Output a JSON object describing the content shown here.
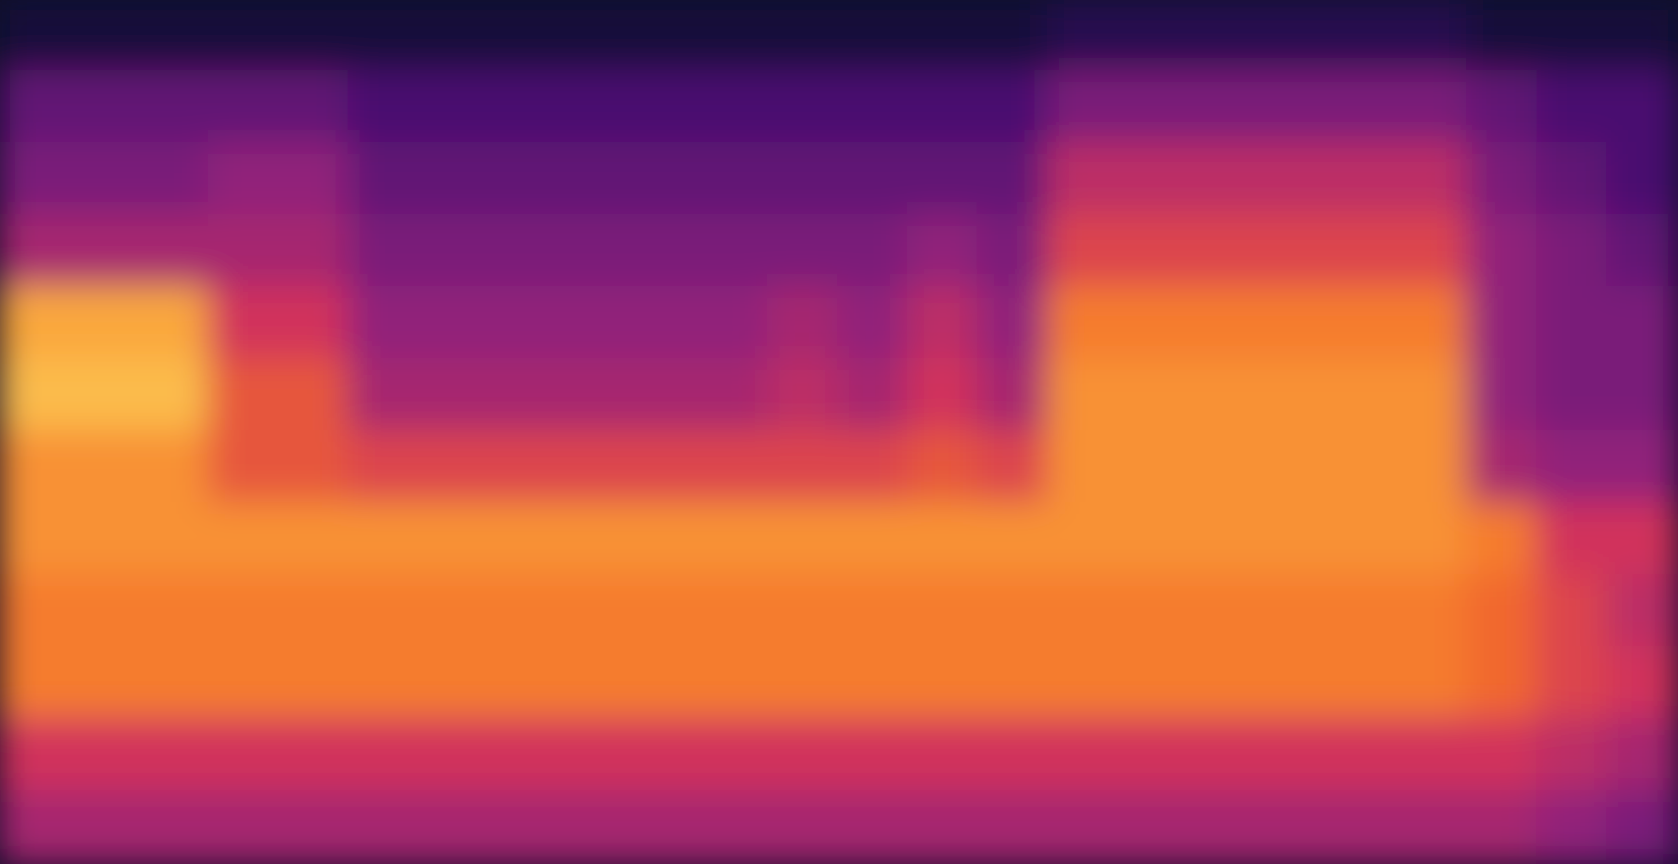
{
  "chart_data": {
    "type": "heatmap",
    "title": "",
    "xlabel": "",
    "ylabel": "",
    "axes_visible": false,
    "grid": false,
    "legend": "none",
    "colormap": [
      "#0a0826",
      "#3a0d6b",
      "#8a1f7d",
      "#d1335c",
      "#f46d2a",
      "#fbb541",
      "#fcf5a8"
    ],
    "row_order": "high-frequency-at-top",
    "values": [
      [
        0.05,
        0.05,
        0.05,
        0.05,
        0.05,
        0.05,
        0.05,
        0.05,
        0.05,
        0.05,
        0.05,
        0.05,
        0.05,
        0.05,
        0.05,
        0.1,
        0.1,
        0.1,
        0.1,
        0.1,
        0.1,
        0.05,
        0.05,
        0.05
      ],
      [
        0.25,
        0.25,
        0.25,
        0.25,
        0.25,
        0.2,
        0.2,
        0.2,
        0.2,
        0.2,
        0.2,
        0.2,
        0.2,
        0.2,
        0.2,
        0.3,
        0.3,
        0.3,
        0.3,
        0.3,
        0.3,
        0.25,
        0.2,
        0.2
      ],
      [
        0.3,
        0.3,
        0.3,
        0.35,
        0.35,
        0.25,
        0.25,
        0.25,
        0.25,
        0.25,
        0.25,
        0.25,
        0.25,
        0.25,
        0.25,
        0.45,
        0.45,
        0.45,
        0.45,
        0.45,
        0.45,
        0.3,
        0.25,
        0.2
      ],
      [
        0.4,
        0.4,
        0.4,
        0.4,
        0.4,
        0.3,
        0.3,
        0.3,
        0.3,
        0.3,
        0.3,
        0.3,
        0.3,
        0.35,
        0.3,
        0.55,
        0.55,
        0.55,
        0.55,
        0.55,
        0.55,
        0.35,
        0.3,
        0.25
      ],
      [
        0.8,
        0.8,
        0.8,
        0.5,
        0.5,
        0.35,
        0.35,
        0.35,
        0.35,
        0.35,
        0.35,
        0.4,
        0.35,
        0.45,
        0.35,
        0.7,
        0.7,
        0.7,
        0.7,
        0.7,
        0.7,
        0.35,
        0.3,
        0.3
      ],
      [
        0.85,
        0.85,
        0.85,
        0.6,
        0.6,
        0.4,
        0.4,
        0.4,
        0.4,
        0.4,
        0.4,
        0.45,
        0.4,
        0.5,
        0.4,
        0.75,
        0.75,
        0.75,
        0.75,
        0.75,
        0.75,
        0.35,
        0.3,
        0.3
      ],
      [
        0.75,
        0.75,
        0.75,
        0.6,
        0.6,
        0.55,
        0.55,
        0.55,
        0.55,
        0.55,
        0.55,
        0.55,
        0.55,
        0.6,
        0.55,
        0.75,
        0.75,
        0.75,
        0.75,
        0.75,
        0.75,
        0.4,
        0.35,
        0.35
      ],
      [
        0.75,
        0.75,
        0.75,
        0.75,
        0.75,
        0.75,
        0.75,
        0.75,
        0.75,
        0.75,
        0.75,
        0.75,
        0.75,
        0.75,
        0.75,
        0.75,
        0.75,
        0.75,
        0.75,
        0.75,
        0.75,
        0.7,
        0.5,
        0.5
      ],
      [
        0.7,
        0.7,
        0.7,
        0.7,
        0.7,
        0.7,
        0.7,
        0.7,
        0.7,
        0.7,
        0.7,
        0.7,
        0.7,
        0.7,
        0.7,
        0.7,
        0.7,
        0.7,
        0.7,
        0.7,
        0.7,
        0.65,
        0.55,
        0.45
      ],
      [
        0.7,
        0.7,
        0.7,
        0.7,
        0.7,
        0.7,
        0.7,
        0.7,
        0.7,
        0.7,
        0.7,
        0.7,
        0.7,
        0.7,
        0.7,
        0.7,
        0.7,
        0.7,
        0.7,
        0.7,
        0.7,
        0.65,
        0.55,
        0.5
      ],
      [
        0.5,
        0.5,
        0.5,
        0.5,
        0.5,
        0.5,
        0.5,
        0.5,
        0.5,
        0.5,
        0.5,
        0.5,
        0.5,
        0.5,
        0.5,
        0.5,
        0.5,
        0.5,
        0.5,
        0.5,
        0.5,
        0.5,
        0.45,
        0.4
      ],
      [
        0.4,
        0.4,
        0.4,
        0.4,
        0.4,
        0.4,
        0.4,
        0.4,
        0.4,
        0.4,
        0.4,
        0.4,
        0.4,
        0.4,
        0.4,
        0.4,
        0.4,
        0.4,
        0.4,
        0.4,
        0.4,
        0.4,
        0.35,
        0.3
      ]
    ]
  }
}
